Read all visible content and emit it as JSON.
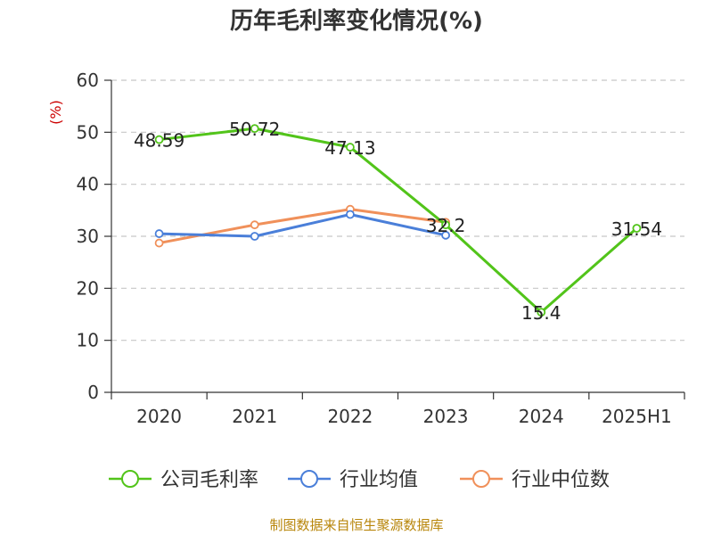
{
  "chart_data": {
    "type": "line",
    "title": "历年毛利率变化情况(%)",
    "y_unit": "(%)",
    "categories": [
      "2020",
      "2021",
      "2022",
      "2023",
      "2024",
      "2025H1"
    ],
    "ylim": [
      0,
      60
    ],
    "yticks": [
      0,
      10,
      20,
      30,
      40,
      50,
      60
    ],
    "grid": true,
    "legend_position": "bottom",
    "series": [
      {
        "name": "公司毛利率",
        "color": "#52c41a",
        "values": [
          48.59,
          50.72,
          47.13,
          32.2,
          15.4,
          31.54
        ],
        "labels": [
          "48.59",
          "50.72",
          "47.13",
          "32.2",
          "15.4",
          "31.54"
        ]
      },
      {
        "name": "行业均值",
        "color": "#4a7fd9",
        "values": [
          30.5,
          30.0,
          34.2,
          30.2,
          null,
          null
        ]
      },
      {
        "name": "行业中位数",
        "color": "#f0905a",
        "values": [
          28.7,
          32.2,
          35.2,
          32.7,
          null,
          null
        ]
      }
    ]
  },
  "source": "制图数据来自恒生聚源数据库"
}
